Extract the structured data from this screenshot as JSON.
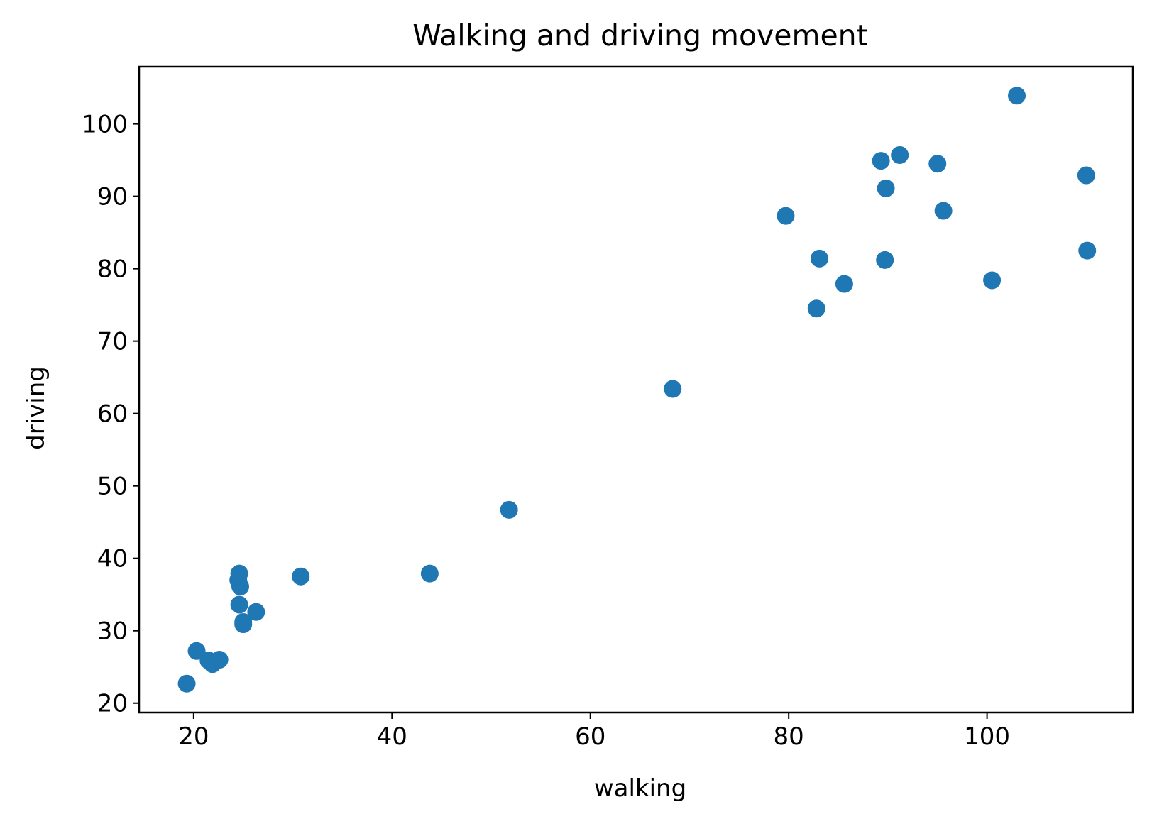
{
  "chart_data": {
    "type": "scatter",
    "title": "Walking and driving movement",
    "xlabel": "walking",
    "ylabel": "driving",
    "xlim": [
      14.5,
      114.7
    ],
    "ylim": [
      18.7,
      107.9
    ],
    "x_ticks": [
      20,
      40,
      60,
      80,
      100
    ],
    "y_ticks": [
      20,
      30,
      40,
      50,
      60,
      70,
      80,
      90,
      100
    ],
    "grid": false,
    "marker_color": "#1f77b4",
    "series": [
      {
        "points": [
          {
            "x": 19.3,
            "y": 22.7
          },
          {
            "x": 20.3,
            "y": 27.2
          },
          {
            "x": 21.5,
            "y": 25.9
          },
          {
            "x": 21.9,
            "y": 25.4
          },
          {
            "x": 22.6,
            "y": 26.0
          },
          {
            "x": 24.6,
            "y": 37.9
          },
          {
            "x": 24.5,
            "y": 37.0
          },
          {
            "x": 24.7,
            "y": 36.1
          },
          {
            "x": 24.6,
            "y": 33.6
          },
          {
            "x": 25.0,
            "y": 31.2
          },
          {
            "x": 25.0,
            "y": 30.9
          },
          {
            "x": 26.3,
            "y": 32.6
          },
          {
            "x": 30.8,
            "y": 37.5
          },
          {
            "x": 43.8,
            "y": 37.9
          },
          {
            "x": 51.8,
            "y": 46.7
          },
          {
            "x": 68.3,
            "y": 63.4
          },
          {
            "x": 79.7,
            "y": 87.3
          },
          {
            "x": 82.8,
            "y": 74.5
          },
          {
            "x": 83.1,
            "y": 81.4
          },
          {
            "x": 85.6,
            "y": 77.9
          },
          {
            "x": 89.3,
            "y": 94.9
          },
          {
            "x": 91.2,
            "y": 95.7
          },
          {
            "x": 89.8,
            "y": 91.1
          },
          {
            "x": 89.7,
            "y": 81.2
          },
          {
            "x": 95.0,
            "y": 94.5
          },
          {
            "x": 95.6,
            "y": 88.0
          },
          {
            "x": 100.5,
            "y": 78.4
          },
          {
            "x": 103.0,
            "y": 103.9
          },
          {
            "x": 110.0,
            "y": 92.9
          },
          {
            "x": 110.1,
            "y": 82.5
          }
        ]
      }
    ]
  }
}
